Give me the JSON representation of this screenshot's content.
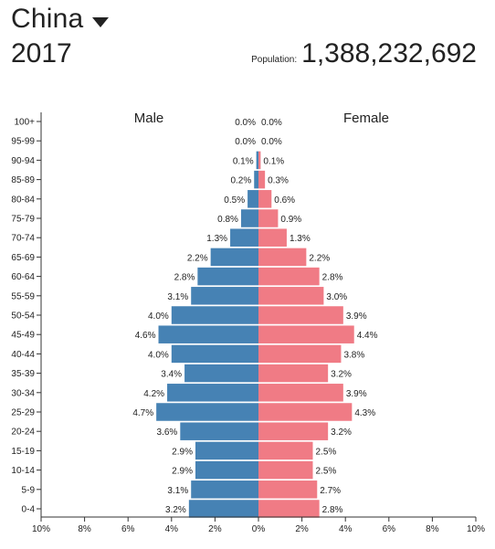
{
  "header": {
    "country": "China",
    "year": "2017",
    "population_label": "Population:",
    "population_value": "1,388,232,692"
  },
  "colors": {
    "male": "#4682b4",
    "female": "#f07b85"
  },
  "chart_data": {
    "type": "bar",
    "orientation": "horizontal-pyramid",
    "categories": [
      "100+",
      "95-99",
      "90-94",
      "85-89",
      "80-84",
      "75-79",
      "70-74",
      "65-69",
      "60-64",
      "55-59",
      "50-54",
      "45-49",
      "40-44",
      "35-39",
      "30-34",
      "25-29",
      "20-24",
      "15-19",
      "10-14",
      "5-9",
      "0-4"
    ],
    "series": [
      {
        "name": "Male",
        "color": "#4682b4",
        "values": [
          0.0,
          0.0,
          0.1,
          0.2,
          0.5,
          0.8,
          1.3,
          2.2,
          2.8,
          3.1,
          4.0,
          4.6,
          4.0,
          3.4,
          4.2,
          4.7,
          3.6,
          2.9,
          2.9,
          3.1,
          3.2
        ]
      },
      {
        "name": "Female",
        "color": "#f07b85",
        "values": [
          0.0,
          0.0,
          0.1,
          0.3,
          0.6,
          0.9,
          1.3,
          2.2,
          2.8,
          3.0,
          3.9,
          4.4,
          3.8,
          3.2,
          3.9,
          4.3,
          3.2,
          2.5,
          2.5,
          2.7,
          2.8
        ]
      }
    ],
    "x_ticks": [
      "10%",
      "8%",
      "6%",
      "4%",
      "2%",
      "0%",
      "2%",
      "4%",
      "6%",
      "8%",
      "10%"
    ],
    "xlim": [
      -10,
      10
    ],
    "value_suffix": "%"
  }
}
